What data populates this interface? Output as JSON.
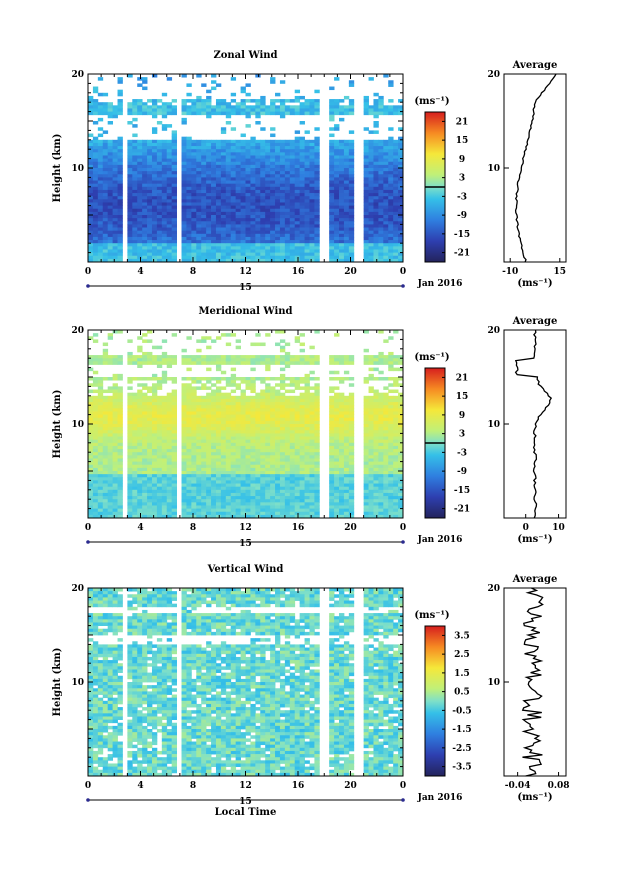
{
  "chart_data": [
    {
      "type": "heatmap",
      "title": "Zonal Wind",
      "ylabel": "Height (km)",
      "xticks": [
        "0",
        "4",
        "8",
        "12",
        "16",
        "20",
        "0"
      ],
      "yticks": [
        "10",
        "20"
      ],
      "day_label": "15",
      "date_label": "Jan 2016",
      "colorbar": {
        "unit": "(ms⁻¹)",
        "ticks": [
          "21",
          "15",
          "9",
          "3",
          "-3",
          "-9",
          "-15",
          "-21"
        ],
        "range": [
          -24,
          24
        ]
      },
      "average": {
        "title": "Average",
        "xticks": [
          "-10",
          "15"
        ],
        "xlabel": "(ms⁻¹)",
        "yticks": [
          "10",
          "20"
        ]
      }
    },
    {
      "type": "heatmap",
      "title": "Meridional Wind",
      "ylabel": "Height (km)",
      "xticks": [
        "0",
        "4",
        "8",
        "12",
        "16",
        "20",
        "0"
      ],
      "yticks": [
        "10",
        "20"
      ],
      "day_label": "15",
      "date_label": "Jan 2016",
      "colorbar": {
        "unit": "(ms⁻¹)",
        "ticks": [
          "21",
          "15",
          "9",
          "3",
          "-3",
          "-9",
          "-15",
          "-21"
        ],
        "range": [
          -24,
          24
        ]
      },
      "average": {
        "title": "Average",
        "xticks": [
          "0",
          "10"
        ],
        "xlabel": "(ms⁻¹)",
        "yticks": [
          "10",
          "20"
        ]
      }
    },
    {
      "type": "heatmap",
      "title": "Vertical Wind",
      "ylabel": "Height (km)",
      "xlabel": "Local Time",
      "xticks": [
        "0",
        "4",
        "8",
        "12",
        "16",
        "20",
        "0"
      ],
      "yticks": [
        "10",
        "20"
      ],
      "day_label": "15",
      "date_label": "Jan 2016",
      "colorbar": {
        "unit": "(ms⁻¹)",
        "ticks": [
          "3.5",
          "2.5",
          "1.5",
          "0.5",
          "-0.5",
          "-1.5",
          "-2.5",
          "-3.5"
        ],
        "range": [
          -4,
          4
        ]
      },
      "average": {
        "title": "Average",
        "xticks": [
          "-0.04",
          "0.08"
        ],
        "xlabel": "(ms⁻¹)",
        "yticks": [
          "10",
          "20"
        ]
      }
    }
  ]
}
